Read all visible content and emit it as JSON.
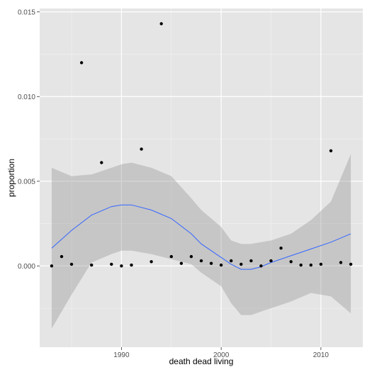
{
  "chart_data": {
    "type": "scatter",
    "xlabel": "death dead living",
    "ylabel": "proportion",
    "xlim": [
      1981.8,
      2014.2
    ],
    "ylim": [
      -0.0048,
      0.0152
    ],
    "x_ticks": [
      1990,
      2000,
      2010
    ],
    "x_tick_labels": [
      "1990",
      "2000",
      "2010"
    ],
    "y_ticks": [
      0.0,
      0.005,
      0.01,
      0.015
    ],
    "y_tick_labels": [
      "0.000",
      "0.005",
      "0.010",
      "0.015"
    ],
    "grid": true,
    "legend": "none",
    "points": {
      "x": [
        1983,
        1984,
        1985,
        1986,
        1987,
        1988,
        1989,
        1990,
        1991,
        1992,
        1993,
        1994,
        1995,
        1996,
        1997,
        1998,
        1999,
        2000,
        2001,
        2002,
        2003,
        2004,
        2005,
        2006,
        2007,
        2008,
        2009,
        2010,
        2011,
        2012,
        2013
      ],
      "y": [
        0.0,
        0.00055,
        0.0001,
        0.012,
        5e-05,
        0.0061,
        0.0001,
        0.0,
        5e-05,
        0.0069,
        0.00025,
        0.0143,
        0.00055,
        0.00015,
        0.00055,
        0.0003,
        0.00015,
        5e-05,
        0.0003,
        0.0001,
        0.0003,
        0.0,
        0.0003,
        0.00105,
        0.00025,
        5e-05,
        5e-05,
        0.0001,
        0.0068,
        0.0002,
        0.0001
      ]
    },
    "smooth": {
      "x": [
        1983,
        1985,
        1987,
        1989,
        1990,
        1991,
        1993,
        1995,
        1997,
        1998,
        2000,
        2001,
        2002,
        2003,
        2004,
        2005,
        2007,
        2009,
        2011,
        2013
      ],
      "y": [
        0.00105,
        0.0021,
        0.003,
        0.0035,
        0.0036,
        0.0036,
        0.0033,
        0.0028,
        0.0019,
        0.0013,
        0.0005,
        0.0001,
        -0.0002,
        -0.0002,
        -5e-05,
        0.0002,
        0.0006,
        0.001,
        0.0014,
        0.0019
      ],
      "lower": [
        -0.0037,
        -0.0017,
        0.0002,
        0.0007,
        0.0009,
        0.0009,
        0.0007,
        0.0004,
        0.0001,
        -0.0004,
        -0.0012,
        -0.0022,
        -0.0029,
        -0.0029,
        -0.0027,
        -0.0025,
        -0.0021,
        -0.0016,
        -0.0018,
        -0.0028
      ],
      "upper": [
        0.0058,
        0.0053,
        0.0054,
        0.0058,
        0.006,
        0.0061,
        0.0058,
        0.0053,
        0.004,
        0.0033,
        0.0023,
        0.0015,
        0.0013,
        0.0013,
        0.0014,
        0.0015,
        0.0019,
        0.0027,
        0.0038,
        0.0066
      ]
    },
    "colors": {
      "panel": "#e5e5e5",
      "grid_major": "#ffffff",
      "grid_minor": "#f2f2f2",
      "point": "#000000",
      "line": "#3366ff",
      "band": "#999999"
    }
  }
}
